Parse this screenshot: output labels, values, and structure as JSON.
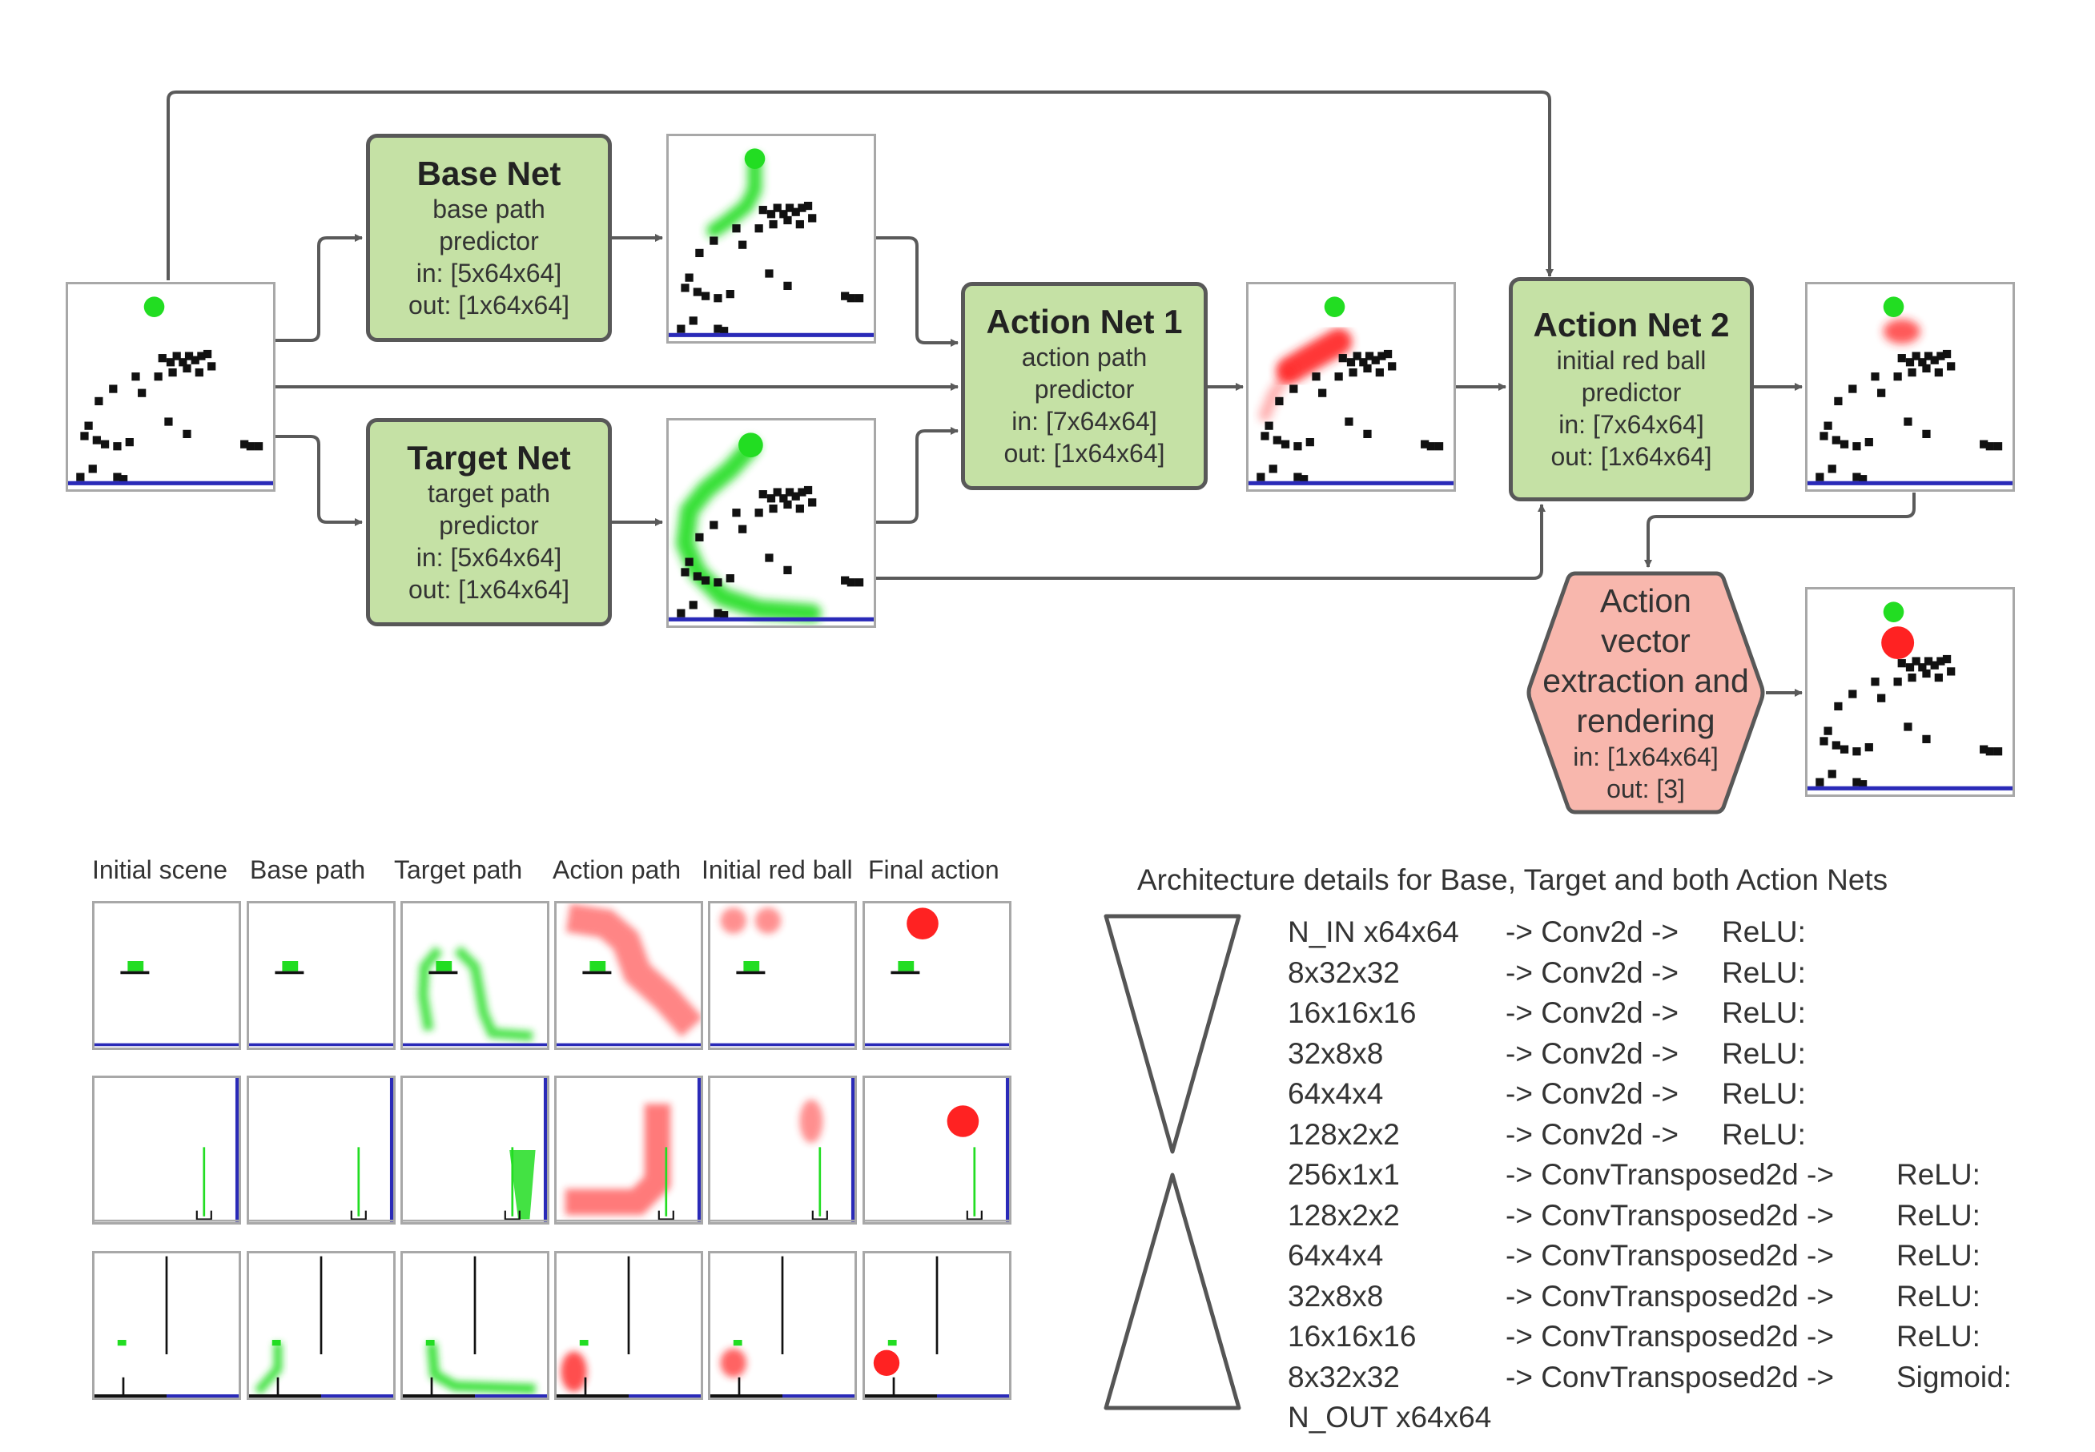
{
  "nets": {
    "base": {
      "title": "Base Net",
      "lines": [
        "base path",
        "predictor",
        "in: [5x64x64]",
        "out: [1x64x64]"
      ]
    },
    "target": {
      "title": "Target Net",
      "lines": [
        "target path",
        "predictor",
        "in: [5x64x64]",
        "out: [1x64x64]"
      ]
    },
    "action1": {
      "title": "Action Net 1",
      "lines": [
        "action path",
        "predictor",
        "in: [7x64x64]",
        "out: [1x64x64]"
      ]
    },
    "action2": {
      "title": "Action Net 2",
      "lines": [
        "initial red ball",
        "predictor",
        "in: [7x64x64]",
        "out: [1x64x64]"
      ]
    }
  },
  "extraction": {
    "title_lines": [
      "Action",
      "vector",
      "extraction and",
      "rendering"
    ],
    "lines": [
      "in: [1x64x64]",
      "out: [3]"
    ]
  },
  "grid": {
    "columns": [
      "Initial scene",
      "Base path",
      "Target path",
      "Action path",
      "Initial red ball",
      "Final action"
    ]
  },
  "architecture": {
    "title": "Architecture details for Base, Target and both Action Nets",
    "rows": [
      {
        "shape": "N_IN x64x64",
        "op": "-> Conv2d ->",
        "act": "ReLU:"
      },
      {
        "shape": "8x32x32",
        "op": "-> Conv2d ->",
        "act": "ReLU:"
      },
      {
        "shape": "16x16x16",
        "op": "-> Conv2d ->",
        "act": "ReLU:"
      },
      {
        "shape": "32x8x8",
        "op": "-> Conv2d ->",
        "act": "ReLU:"
      },
      {
        "shape": "64x4x4",
        "op": "-> Conv2d ->",
        "act": "ReLU:"
      },
      {
        "shape": "128x2x2",
        "op": "-> Conv2d ->",
        "act": "ReLU:"
      },
      {
        "shape": "256x1x1",
        "op": "-> ConvTransposed2d ->",
        "act": "ReLU:"
      },
      {
        "shape": "128x2x2",
        "op": "-> ConvTransposed2d ->",
        "act": "ReLU:"
      },
      {
        "shape": "64x4x4",
        "op": "-> ConvTransposed2d ->",
        "act": "ReLU:"
      },
      {
        "shape": "32x8x8",
        "op": "-> ConvTransposed2d ->",
        "act": "ReLU:"
      },
      {
        "shape": "16x16x16",
        "op": "-> ConvTransposed2d ->",
        "act": "ReLU:"
      },
      {
        "shape": "8x32x32",
        "op": "-> ConvTransposed2d ->",
        "act": "Sigmoid:"
      },
      {
        "shape": "N_OUT x64x64",
        "op": "",
        "act": ""
      }
    ]
  },
  "colors": {
    "net_fill": "#c5e1a5",
    "extraction_fill": "#f8b7ad",
    "connector": "#5a5a5a",
    "path_green": "#22dd22",
    "path_red": "#ff2222",
    "ground_blue": "#2a2ab8"
  }
}
